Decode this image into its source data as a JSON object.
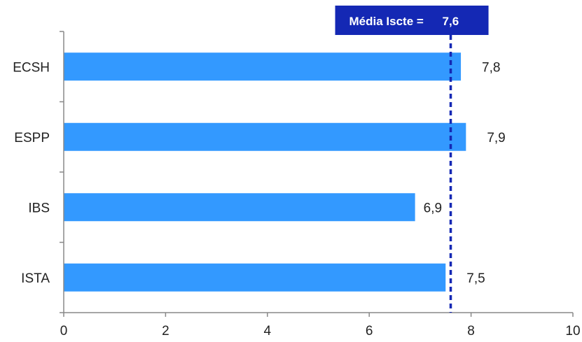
{
  "chart_data": {
    "type": "bar",
    "orientation": "horizontal",
    "categories": [
      "ECSH",
      "ESPP",
      "IBS",
      "ISTA"
    ],
    "values": [
      7.8,
      7.9,
      6.9,
      7.5
    ],
    "value_labels": [
      "7,8",
      "7,9",
      "6,9",
      "7,5"
    ],
    "xlim": [
      0,
      10
    ],
    "x_ticks": [
      0,
      2,
      4,
      6,
      8,
      10
    ],
    "x_tick_labels": [
      "0",
      "2",
      "4",
      "6",
      "8",
      "10"
    ],
    "grid": false,
    "bar_color": "#3399FF",
    "reference_line": {
      "value": 7.6,
      "label": "Média Iscte =",
      "value_label": "7,6",
      "color": "#1428B4",
      "style": "dashed"
    }
  }
}
